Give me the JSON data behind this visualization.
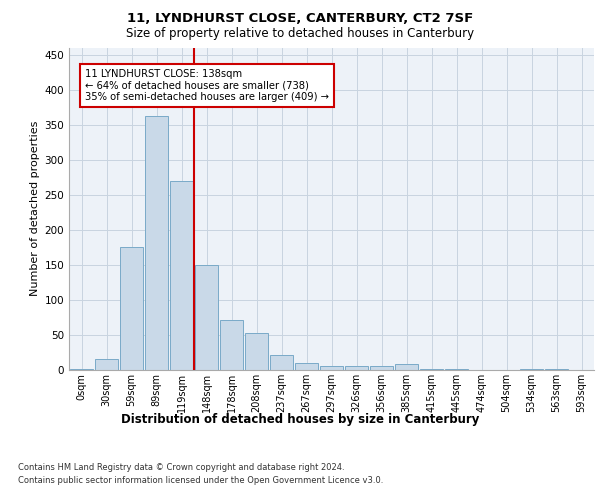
{
  "title_line1": "11, LYNDHURST CLOSE, CANTERBURY, CT2 7SF",
  "title_line2": "Size of property relative to detached houses in Canterbury",
  "xlabel": "Distribution of detached houses by size in Canterbury",
  "ylabel": "Number of detached properties",
  "bar_labels": [
    "0sqm",
    "30sqm",
    "59sqm",
    "89sqm",
    "119sqm",
    "148sqm",
    "178sqm",
    "208sqm",
    "237sqm",
    "267sqm",
    "297sqm",
    "326sqm",
    "356sqm",
    "385sqm",
    "415sqm",
    "445sqm",
    "474sqm",
    "504sqm",
    "534sqm",
    "563sqm",
    "593sqm"
  ],
  "bar_values": [
    2,
    15,
    175,
    363,
    270,
    150,
    72,
    53,
    22,
    10,
    6,
    6,
    5,
    8,
    1,
    1,
    0,
    0,
    2,
    1,
    0
  ],
  "bar_color": "#c9d9e8",
  "bar_edgecolor": "#7aaac8",
  "annotation_text_line1": "11 LYNDHURST CLOSE: 138sqm",
  "annotation_text_line2": "← 64% of detached houses are smaller (738)",
  "annotation_text_line3": "35% of semi-detached houses are larger (409) →",
  "vline_bin_index": 4,
  "vline_color": "#cc0000",
  "ylim": [
    0,
    460
  ],
  "yticks": [
    0,
    50,
    100,
    150,
    200,
    250,
    300,
    350,
    400,
    450
  ],
  "footer_line1": "Contains HM Land Registry data © Crown copyright and database right 2024.",
  "footer_line2": "Contains public sector information licensed under the Open Government Licence v3.0.",
  "bg_color": "#edf2f8",
  "grid_color": "#c8d4e0"
}
